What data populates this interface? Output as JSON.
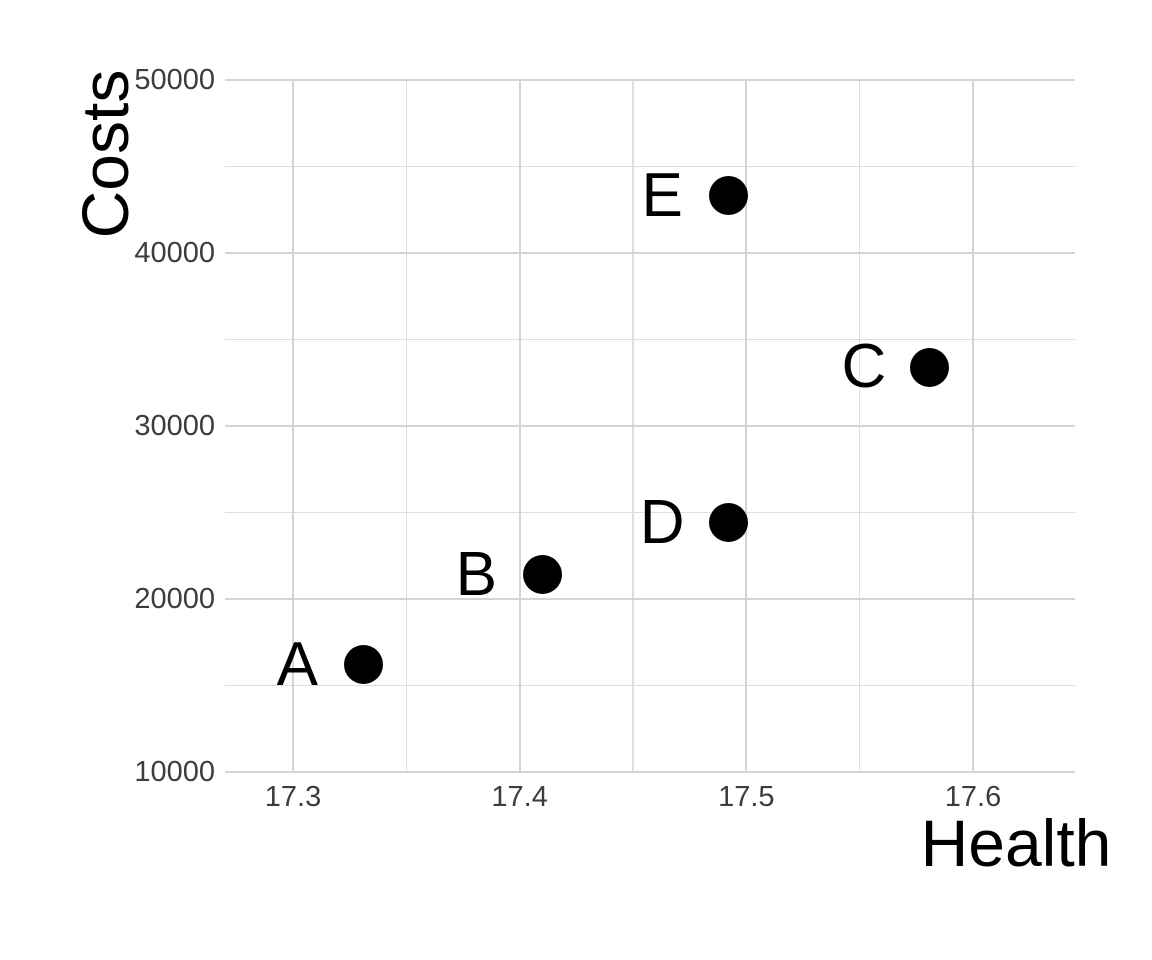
{
  "chart_data": {
    "type": "scatter",
    "title": "",
    "xlabel": "Health",
    "ylabel": "Costs",
    "xlim": [
      17.27,
      17.645
    ],
    "ylim": [
      10000,
      50000
    ],
    "x_major_ticks": [
      17.3,
      17.4,
      17.5,
      17.6
    ],
    "x_tick_labels": [
      "17.3",
      "17.4",
      "17.5",
      "17.6"
    ],
    "x_minor_ticks": [
      17.35,
      17.45,
      17.55
    ],
    "y_major_ticks": [
      10000,
      20000,
      30000,
      40000,
      50000
    ],
    "y_tick_labels": [
      "10000",
      "20000",
      "30000",
      "40000",
      "50000"
    ],
    "y_minor_ticks": [
      15000,
      25000,
      35000,
      45000
    ],
    "grid": true,
    "legend": false,
    "point_color": "#000000",
    "gridline_color": "#d4d4d4",
    "tick_label_color": "#3d3d3d",
    "axis_title_color": "#000000",
    "points": [
      {
        "label": "A",
        "x": 17.331,
        "y": 16200
      },
      {
        "label": "B",
        "x": 17.41,
        "y": 21400
      },
      {
        "label": "C",
        "x": 17.581,
        "y": 33400
      },
      {
        "label": "D",
        "x": 17.492,
        "y": 24400
      },
      {
        "label": "E",
        "x": 17.492,
        "y": 43300
      }
    ]
  }
}
